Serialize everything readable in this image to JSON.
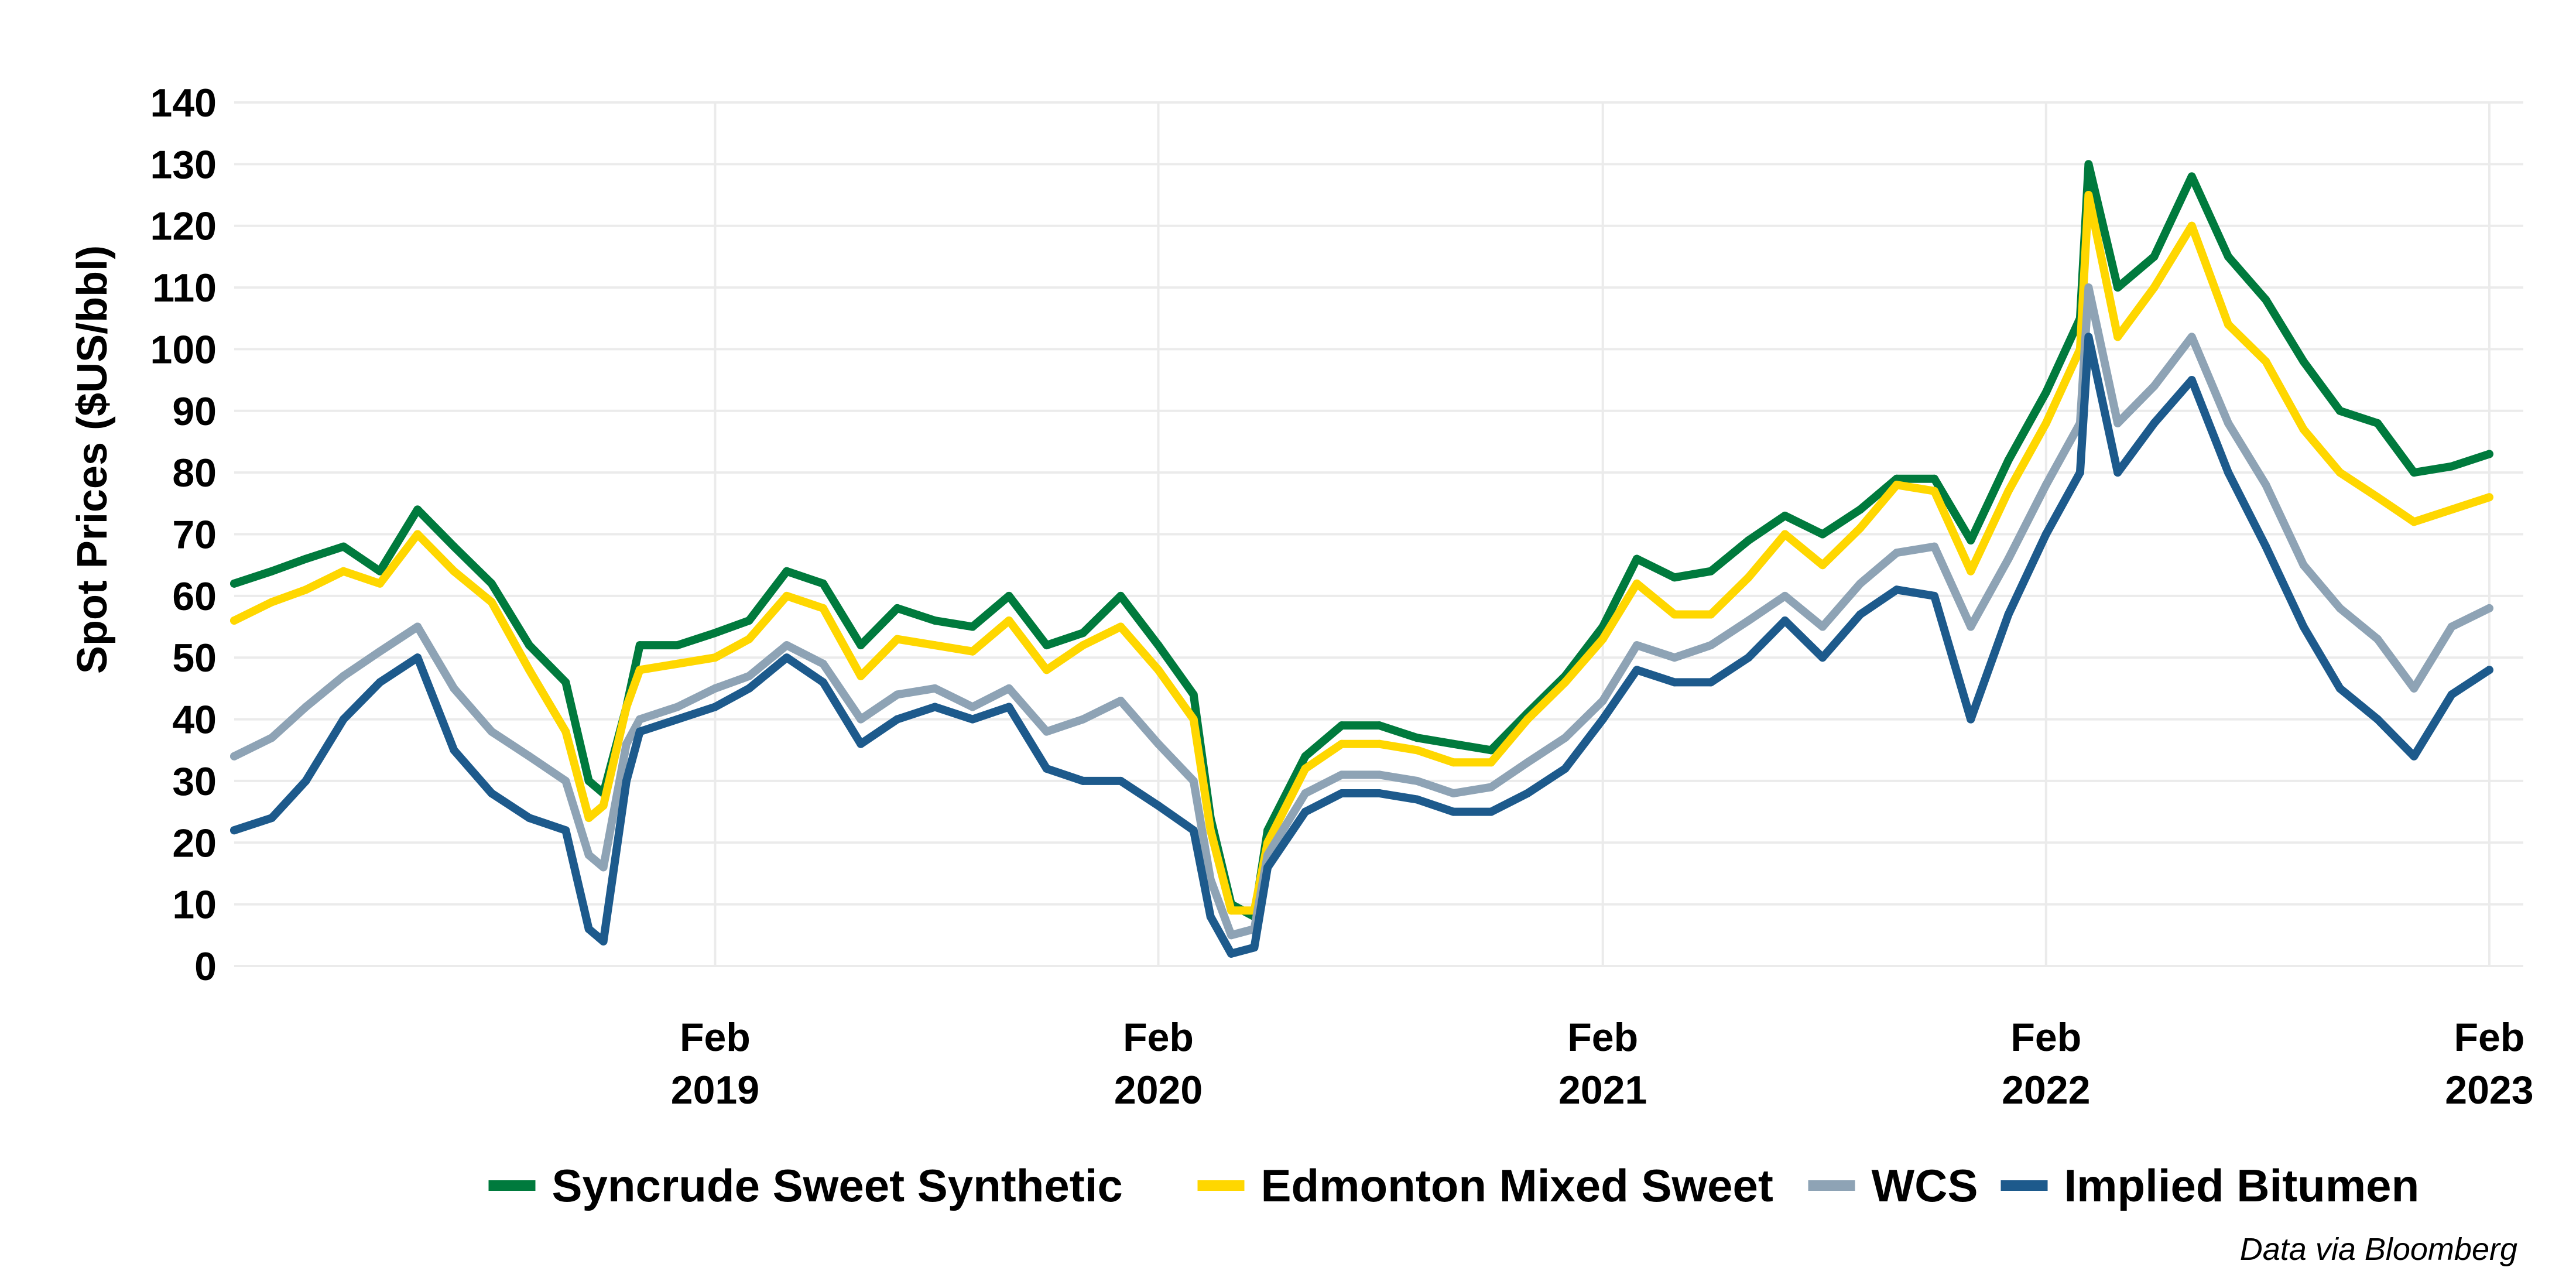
{
  "chart_data": {
    "type": "line",
    "title": "",
    "xlabel": "",
    "ylabel": "Spot Prices ($US/bbl)",
    "ylim": [
      0,
      140
    ],
    "y_ticks": [
      0,
      10,
      20,
      30,
      40,
      50,
      60,
      70,
      80,
      90,
      100,
      110,
      120,
      130,
      140
    ],
    "xlim": [
      "2018-01-01",
      "2023-03-01"
    ],
    "x_ticks": [
      {
        "date": "2019-02-01",
        "line1": "Feb",
        "line2": "2019"
      },
      {
        "date": "2020-02-01",
        "line1": "Feb",
        "line2": "2020"
      },
      {
        "date": "2021-02-01",
        "line1": "Feb",
        "line2": "2021"
      },
      {
        "date": "2022-02-01",
        "line1": "Feb",
        "line2": "2022"
      },
      {
        "date": "2023-02-01",
        "line1": "Feb",
        "line2": "2023"
      }
    ],
    "grid": true,
    "legend_position": "bottom",
    "caption": "Data via Bloomberg",
    "x": [
      "2018-01-01",
      "2018-02-01",
      "2018-03-01",
      "2018-04-01",
      "2018-05-01",
      "2018-06-01",
      "2018-07-01",
      "2018-08-01",
      "2018-09-01",
      "2018-10-01",
      "2018-10-20",
      "2018-11-01",
      "2018-11-20",
      "2018-12-01",
      "2019-01-01",
      "2019-02-01",
      "2019-03-01",
      "2019-04-01",
      "2019-05-01",
      "2019-06-01",
      "2019-07-01",
      "2019-08-01",
      "2019-09-01",
      "2019-10-01",
      "2019-11-01",
      "2019-12-01",
      "2020-01-01",
      "2020-02-01",
      "2020-03-01",
      "2020-03-15",
      "2020-04-01",
      "2020-04-20",
      "2020-05-01",
      "2020-06-01",
      "2020-07-01",
      "2020-08-01",
      "2020-09-01",
      "2020-10-01",
      "2020-11-01",
      "2020-12-01",
      "2021-01-01",
      "2021-02-01",
      "2021-03-01",
      "2021-04-01",
      "2021-05-01",
      "2021-06-01",
      "2021-07-01",
      "2021-08-01",
      "2021-09-01",
      "2021-10-01",
      "2021-11-01",
      "2021-12-01",
      "2022-01-01",
      "2022-02-01",
      "2022-03-01",
      "2022-03-08",
      "2022-04-01",
      "2022-05-01",
      "2022-06-01",
      "2022-07-01",
      "2022-08-01",
      "2022-09-01",
      "2022-10-01",
      "2022-11-01",
      "2022-12-01",
      "2023-01-01",
      "2023-02-01"
    ],
    "series": [
      {
        "name": "Syncrude Sweet Synthetic",
        "color": "#007a3d",
        "values": [
          62,
          64,
          66,
          68,
          64,
          74,
          68,
          62,
          52,
          46,
          30,
          28,
          42,
          52,
          52,
          54,
          56,
          64,
          62,
          52,
          58,
          56,
          55,
          60,
          52,
          54,
          60,
          52,
          44,
          24,
          10,
          8,
          22,
          34,
          39,
          39,
          37,
          36,
          35,
          41,
          47,
          55,
          66,
          63,
          64,
          69,
          73,
          70,
          74,
          79,
          79,
          69,
          82,
          93,
          105,
          130,
          110,
          115,
          128,
          115,
          108,
          98,
          90,
          88,
          80,
          81,
          83
        ]
      },
      {
        "name": "Edmonton Mixed Sweet",
        "color": "#ffd700",
        "values": [
          56,
          59,
          61,
          64,
          62,
          70,
          64,
          59,
          48,
          38,
          24,
          26,
          42,
          48,
          49,
          50,
          53,
          60,
          58,
          47,
          53,
          52,
          51,
          56,
          48,
          52,
          55,
          48,
          40,
          22,
          9,
          9,
          20,
          32,
          36,
          36,
          35,
          33,
          33,
          40,
          46,
          53,
          62,
          57,
          57,
          63,
          70,
          65,
          71,
          78,
          77,
          64,
          77,
          88,
          100,
          125,
          102,
          110,
          120,
          104,
          98,
          87,
          80,
          76,
          72,
          74,
          76
        ]
      },
      {
        "name": "WCS",
        "color": "#8ea3b5",
        "values": [
          34,
          37,
          42,
          47,
          51,
          55,
          45,
          38,
          34,
          30,
          18,
          16,
          36,
          40,
          42,
          45,
          47,
          52,
          49,
          40,
          44,
          45,
          42,
          45,
          38,
          40,
          43,
          36,
          30,
          14,
          5,
          6,
          18,
          28,
          31,
          31,
          30,
          28,
          29,
          33,
          37,
          43,
          52,
          50,
          52,
          56,
          60,
          55,
          62,
          67,
          68,
          55,
          66,
          78,
          88,
          110,
          88,
          94,
          102,
          88,
          78,
          65,
          58,
          53,
          45,
          55,
          58
        ]
      },
      {
        "name": "Implied Bitumen",
        "color": "#1d5a8c",
        "values": [
          22,
          24,
          30,
          40,
          46,
          50,
          35,
          28,
          24,
          22,
          6,
          4,
          30,
          38,
          40,
          42,
          45,
          50,
          46,
          36,
          40,
          42,
          40,
          42,
          32,
          30,
          30,
          26,
          22,
          8,
          2,
          3,
          16,
          25,
          28,
          28,
          27,
          25,
          25,
          28,
          32,
          40,
          48,
          46,
          46,
          50,
          56,
          50,
          57,
          61,
          60,
          40,
          57,
          70,
          80,
          102,
          80,
          88,
          95,
          80,
          68,
          55,
          45,
          40,
          34,
          44,
          48
        ]
      }
    ]
  }
}
